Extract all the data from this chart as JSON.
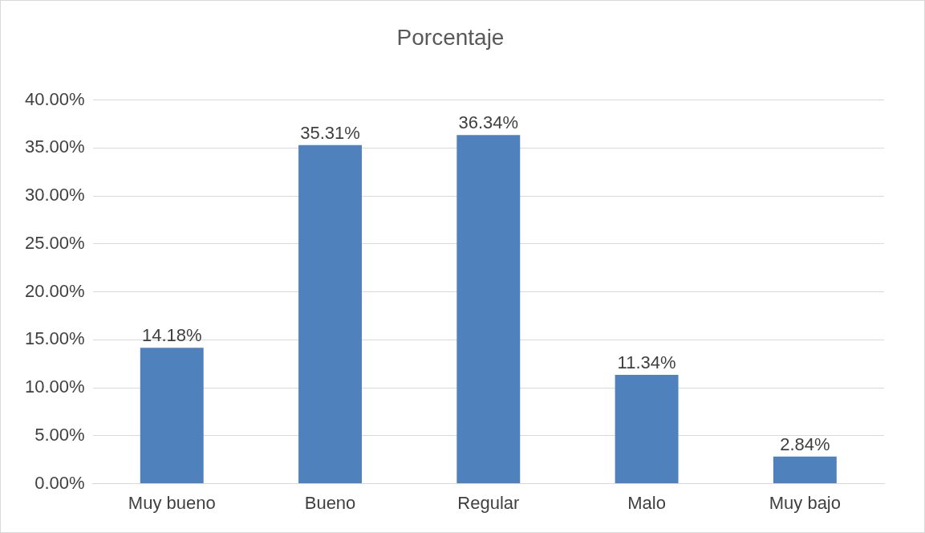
{
  "chart_data": {
    "type": "bar",
    "title": "Porcentaje",
    "categories": [
      "Muy bueno",
      "Bueno",
      "Regular",
      "Malo",
      "Muy bajo"
    ],
    "values": [
      14.18,
      35.31,
      36.34,
      11.34,
      2.84
    ],
    "value_labels": [
      "14.18%",
      "35.31%",
      "36.34%",
      "11.34%",
      "2.84%"
    ],
    "color": "#4f81bd",
    "ylim": [
      0,
      40
    ],
    "yticks": [
      {
        "value": 0,
        "label": "0.00%"
      },
      {
        "value": 5,
        "label": "5.00%"
      },
      {
        "value": 10,
        "label": "10.00%"
      },
      {
        "value": 15,
        "label": "15.00%"
      },
      {
        "value": 20,
        "label": "20.00%"
      },
      {
        "value": 25,
        "label": "25.00%"
      },
      {
        "value": 30,
        "label": "30.00%"
      },
      {
        "value": 35,
        "label": "35.00%"
      },
      {
        "value": 40,
        "label": "40.00%"
      }
    ],
    "grid": "y",
    "legend": false
  }
}
